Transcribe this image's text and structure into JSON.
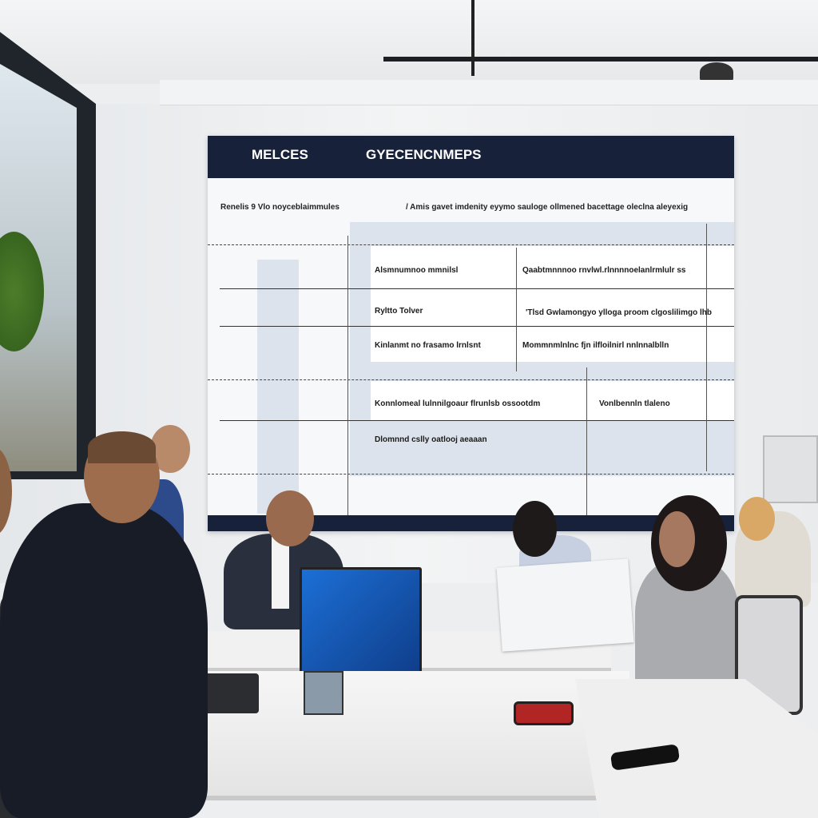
{
  "screen": {
    "header": {
      "left_title": "MELCES",
      "right_title": "GYECENCNMEPS"
    },
    "subheader": {
      "left": "Renelis 9 Vlo noyceblaimmules",
      "right": "/ Amis gavet imdenity eyymo  sauloge ollmened bacettage oleclna aleyexig"
    },
    "rows": [
      {
        "label": "Alsmnumnoo mmnilsl",
        "detail": "Qaabtmnnnoo rnvlwl.rlnnnnoelanlrmlulr ss"
      },
      {
        "label": "Ryltto Tolver",
        "detail": "'Tlsd  Gwlamongyo ylloga proom clgoslilimgo lhb"
      },
      {
        "label": "Kinlanmt no frasamo lrnlsnt",
        "detail": "Mommnmlnlnc fjn ilfloilnirl nnlnnalblln"
      },
      {
        "label": "Konnlomeal lulnnilgoaur flrunlsb  ossootdm",
        "detail": "Vonlbennln tlaleno"
      },
      {
        "label": "Dlomnnd cslly oatlooj aeaaan",
        "detail": ""
      }
    ]
  },
  "colors": {
    "screen_navy": "#18213a",
    "laptop_blue": "#1c6fd6",
    "wall": "#eceef0"
  }
}
